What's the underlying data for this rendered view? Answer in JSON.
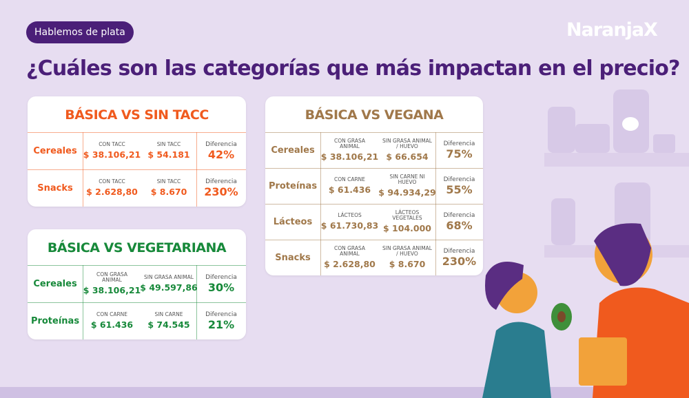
{
  "header": {
    "tag": "Hablemos de plata",
    "logo": "NaranjaX",
    "title": "¿Cuáles son las categorías que más impactan en el precio?"
  },
  "tables": [
    {
      "title": "BÁSICA VS SIN TACC",
      "color": "#f05a1e",
      "rows": [
        {
          "category": "Cereales",
          "a_label": "CON TACC",
          "a_value": "$ 38.106,21",
          "b_label": "SIN TACC",
          "b_value": "$ 54.181",
          "diff_label": "Diferencia",
          "diff": "42%"
        },
        {
          "category": "Snacks",
          "a_label": "CON TACC",
          "a_value": "$ 2.628,80",
          "b_label": "SIN TACC",
          "b_value": "$ 8.670",
          "diff_label": "Diferencia",
          "diff": "230%"
        }
      ]
    },
    {
      "title": "BÁSICA VS VEGETARIANA",
      "color": "#17893a",
      "rows": [
        {
          "category": "Cereales",
          "a_label": "CON GRASA ANIMAL",
          "a_value": "$ 38.106,21",
          "b_label": "SIN GRASA ANIMAL",
          "b_value": "$ 49.597,86",
          "diff_label": "Diferencia",
          "diff": "30%"
        },
        {
          "category": "Proteínas",
          "a_label": "CON CARNE",
          "a_value": "$ 61.436",
          "b_label": "SIN CARNE",
          "b_value": "$ 74.545",
          "diff_label": "Diferencia",
          "diff": "21%"
        }
      ]
    },
    {
      "title": "BÁSICA VS VEGANA",
      "color": "#a0784a",
      "rows": [
        {
          "category": "Cereales",
          "a_label": "CON GRASA ANIMAL",
          "a_value": "$ 38.106,21",
          "b_label": "SIN GRASA ANIMAL / HUEVO",
          "b_value": "$ 66.654",
          "diff_label": "Diferencia",
          "diff": "75%"
        },
        {
          "category": "Proteínas",
          "a_label": "CON CARNE",
          "a_value": "$ 61.436",
          "b_label": "SIN CARNE NI HUEVO",
          "b_value": "$ 94.934,29",
          "diff_label": "Diferencia",
          "diff": "55%"
        },
        {
          "category": "Lácteos",
          "a_label": "LÁCTEOS",
          "a_value": "$ 61.730,83",
          "b_label": "LÁCTEOS VEGETALES",
          "b_value": "$ 104.000",
          "diff_label": "Diferencia",
          "diff": "68%"
        },
        {
          "category": "Snacks",
          "a_label": "CON GRASA ANIMAL",
          "a_value": "$ 2.628,80",
          "b_label": "SIN GRASA ANIMAL / HUEVO",
          "b_value": "$ 8.670",
          "diff_label": "Diferencia",
          "diff": "230%"
        }
      ]
    }
  ]
}
